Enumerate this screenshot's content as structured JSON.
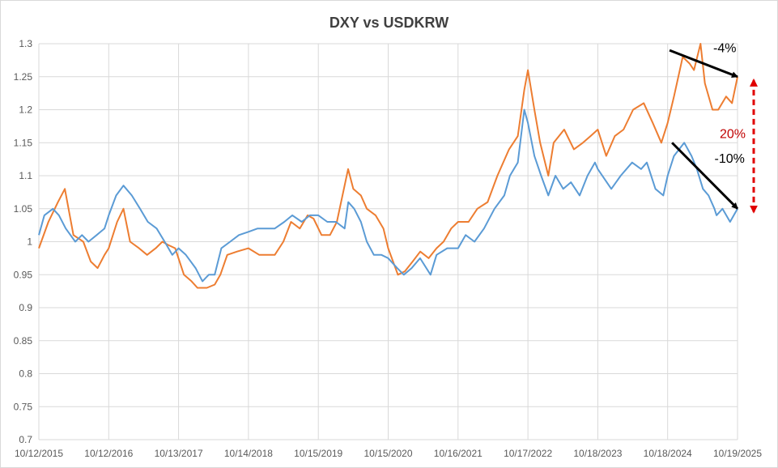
{
  "chart_data": {
    "type": "line",
    "title": "DXY vs USDKRW",
    "xlabel": "",
    "ylabel": "",
    "ylim": [
      0.7,
      1.3
    ],
    "xlim": [
      "2015-10-12",
      "2025-10-19"
    ],
    "grid": true,
    "y_ticks": [
      "0.7",
      "0.75",
      "0.8",
      "0.85",
      "0.9",
      "0.95",
      "1",
      "1.05",
      "1.1",
      "1.15",
      "1.2",
      "1.25",
      "1.3"
    ],
    "x_ticks": [
      "10/12/2015",
      "10/12/2016",
      "10/13/2017",
      "10/14/2018",
      "10/15/2019",
      "10/15/2020",
      "10/16/2021",
      "10/17/2022",
      "10/18/2023",
      "10/18/2024",
      "10/19/2025"
    ],
    "x_tick_dates": [
      "2015-10-12",
      "2016-10-12",
      "2017-10-13",
      "2018-10-14",
      "2019-10-15",
      "2020-10-15",
      "2021-10-16",
      "2022-10-17",
      "2023-10-18",
      "2024-10-18",
      "2025-10-19"
    ],
    "series": [
      {
        "color": "#ed7d31",
        "points": [
          [
            "2015-10-12",
            0.99
          ],
          [
            "2015-12-01",
            1.03
          ],
          [
            "2016-01-20",
            1.06
          ],
          [
            "2016-02-25",
            1.08
          ],
          [
            "2016-04-10",
            1.01
          ],
          [
            "2016-06-01",
            1.0
          ],
          [
            "2016-07-10",
            0.97
          ],
          [
            "2016-08-15",
            0.96
          ],
          [
            "2016-09-20",
            0.98
          ],
          [
            "2016-10-12",
            0.99
          ],
          [
            "2016-11-25",
            1.03
          ],
          [
            "2016-12-28",
            1.05
          ],
          [
            "2017-02-01",
            1.0
          ],
          [
            "2017-03-20",
            0.99
          ],
          [
            "2017-05-01",
            0.98
          ],
          [
            "2017-06-15",
            0.99
          ],
          [
            "2017-07-20",
            1.0
          ],
          [
            "2017-08-20",
            0.995
          ],
          [
            "2017-09-25",
            0.99
          ],
          [
            "2017-11-10",
            0.95
          ],
          [
            "2017-12-20",
            0.94
          ],
          [
            "2018-01-20",
            0.93
          ],
          [
            "2018-03-10",
            0.93
          ],
          [
            "2018-04-20",
            0.935
          ],
          [
            "2018-05-20",
            0.95
          ],
          [
            "2018-06-25",
            0.98
          ],
          [
            "2018-08-15",
            0.985
          ],
          [
            "2018-10-14",
            0.99
          ],
          [
            "2018-12-10",
            0.98
          ],
          [
            "2019-01-20",
            0.98
          ],
          [
            "2019-03-01",
            0.98
          ],
          [
            "2019-04-15",
            1.0
          ],
          [
            "2019-05-25",
            1.03
          ],
          [
            "2019-07-10",
            1.02
          ],
          [
            "2019-08-20",
            1.04
          ],
          [
            "2019-09-20",
            1.035
          ],
          [
            "2019-11-01",
            1.01
          ],
          [
            "2019-12-15",
            1.01
          ],
          [
            "2020-01-20",
            1.03
          ],
          [
            "2020-03-19",
            1.11
          ],
          [
            "2020-04-15",
            1.08
          ],
          [
            "2020-05-25",
            1.07
          ],
          [
            "2020-06-25",
            1.05
          ],
          [
            "2020-08-10",
            1.04
          ],
          [
            "2020-09-20",
            1.02
          ],
          [
            "2020-10-15",
            0.99
          ],
          [
            "2020-12-05",
            0.95
          ],
          [
            "2021-01-10",
            0.955
          ],
          [
            "2021-02-20",
            0.97
          ],
          [
            "2021-04-01",
            0.985
          ],
          [
            "2021-05-15",
            0.975
          ],
          [
            "2021-06-25",
            0.99
          ],
          [
            "2021-08-01",
            1.0
          ],
          [
            "2021-09-10",
            1.02
          ],
          [
            "2021-10-16",
            1.03
          ],
          [
            "2021-12-10",
            1.03
          ],
          [
            "2022-01-25",
            1.05
          ],
          [
            "2022-03-20",
            1.06
          ],
          [
            "2022-05-10",
            1.1
          ],
          [
            "2022-07-10",
            1.14
          ],
          [
            "2022-08-25",
            1.16
          ],
          [
            "2022-09-28",
            1.23
          ],
          [
            "2022-10-17",
            1.26
          ],
          [
            "2022-11-20",
            1.2
          ],
          [
            "2022-12-20",
            1.15
          ],
          [
            "2023-02-01",
            1.1
          ],
          [
            "2023-03-01",
            1.15
          ],
          [
            "2023-04-25",
            1.17
          ],
          [
            "2023-06-15",
            1.14
          ],
          [
            "2023-08-01",
            1.15
          ],
          [
            "2023-09-10",
            1.16
          ],
          [
            "2023-10-18",
            1.17
          ],
          [
            "2023-12-01",
            1.13
          ],
          [
            "2024-01-15",
            1.16
          ],
          [
            "2024-03-01",
            1.17
          ],
          [
            "2024-04-20",
            1.2
          ],
          [
            "2024-06-15",
            1.21
          ],
          [
            "2024-08-01",
            1.18
          ],
          [
            "2024-09-15",
            1.15
          ],
          [
            "2024-10-18",
            1.18
          ],
          [
            "2024-11-20",
            1.22
          ],
          [
            "2025-01-05",
            1.28
          ],
          [
            "2025-02-10",
            1.27
          ],
          [
            "2025-03-05",
            1.26
          ],
          [
            "2025-04-08",
            1.3
          ],
          [
            "2025-05-01",
            1.24
          ],
          [
            "2025-06-10",
            1.2
          ],
          [
            "2025-07-10",
            1.2
          ],
          [
            "2025-08-20",
            1.22
          ],
          [
            "2025-09-20",
            1.21
          ],
          [
            "2025-10-19",
            1.25
          ]
        ]
      },
      {
        "color": "#5b9bd5",
        "points": [
          [
            "2015-10-12",
            1.01
          ],
          [
            "2015-11-10",
            1.04
          ],
          [
            "2015-12-25",
            1.05
          ],
          [
            "2016-01-25",
            1.04
          ],
          [
            "2016-03-01",
            1.02
          ],
          [
            "2016-04-20",
            1.0
          ],
          [
            "2016-05-25",
            1.01
          ],
          [
            "2016-06-28",
            1.0
          ],
          [
            "2016-08-10",
            1.01
          ],
          [
            "2016-09-20",
            1.02
          ],
          [
            "2016-10-12",
            1.04
          ],
          [
            "2016-11-20",
            1.07
          ],
          [
            "2016-12-28",
            1.085
          ],
          [
            "2017-02-10",
            1.07
          ],
          [
            "2017-03-25",
            1.05
          ],
          [
            "2017-05-05",
            1.03
          ],
          [
            "2017-06-20",
            1.02
          ],
          [
            "2017-08-01",
            1.0
          ],
          [
            "2017-09-10",
            0.98
          ],
          [
            "2017-10-13",
            0.99
          ],
          [
            "2017-11-20",
            0.98
          ],
          [
            "2018-01-10",
            0.96
          ],
          [
            "2018-02-15",
            0.94
          ],
          [
            "2018-03-20",
            0.95
          ],
          [
            "2018-04-20",
            0.95
          ],
          [
            "2018-05-25",
            0.99
          ],
          [
            "2018-07-10",
            1.0
          ],
          [
            "2018-08-25",
            1.01
          ],
          [
            "2018-10-14",
            1.015
          ],
          [
            "2018-12-01",
            1.02
          ],
          [
            "2019-01-15",
            1.02
          ],
          [
            "2019-03-01",
            1.02
          ],
          [
            "2019-04-20",
            1.03
          ],
          [
            "2019-06-01",
            1.04
          ],
          [
            "2019-07-20",
            1.03
          ],
          [
            "2019-09-01",
            1.04
          ],
          [
            "2019-10-15",
            1.04
          ],
          [
            "2019-12-01",
            1.03
          ],
          [
            "2020-01-15",
            1.03
          ],
          [
            "2020-03-01",
            1.02
          ],
          [
            "2020-03-20",
            1.06
          ],
          [
            "2020-04-20",
            1.05
          ],
          [
            "2020-05-25",
            1.03
          ],
          [
            "2020-06-25",
            1.0
          ],
          [
            "2020-08-01",
            0.98
          ],
          [
            "2020-09-10",
            0.98
          ],
          [
            "2020-10-15",
            0.975
          ],
          [
            "2020-12-01",
            0.96
          ],
          [
            "2021-01-05",
            0.95
          ],
          [
            "2021-02-15",
            0.96
          ],
          [
            "2021-03-31",
            0.975
          ],
          [
            "2021-05-25",
            0.95
          ],
          [
            "2021-06-25",
            0.98
          ],
          [
            "2021-08-20",
            0.99
          ],
          [
            "2021-09-25",
            0.99
          ],
          [
            "2021-10-16",
            0.99
          ],
          [
            "2021-11-25",
            1.01
          ],
          [
            "2022-01-10",
            1.0
          ],
          [
            "2022-03-01",
            1.02
          ],
          [
            "2022-04-25",
            1.05
          ],
          [
            "2022-06-15",
            1.07
          ],
          [
            "2022-07-15",
            1.1
          ],
          [
            "2022-08-25",
            1.12
          ],
          [
            "2022-09-28",
            1.2
          ],
          [
            "2022-10-17",
            1.18
          ],
          [
            "2022-11-20",
            1.13
          ],
          [
            "2022-12-25",
            1.1
          ],
          [
            "2023-02-01",
            1.07
          ],
          [
            "2023-03-10",
            1.1
          ],
          [
            "2023-04-20",
            1.08
          ],
          [
            "2023-05-30",
            1.09
          ],
          [
            "2023-07-15",
            1.07
          ],
          [
            "2023-08-25",
            1.1
          ],
          [
            "2023-10-03",
            1.12
          ],
          [
            "2023-10-18",
            1.11
          ],
          [
            "2023-12-28",
            1.08
          ],
          [
            "2024-02-15",
            1.1
          ],
          [
            "2024-04-15",
            1.12
          ],
          [
            "2024-06-01",
            1.11
          ],
          [
            "2024-07-01",
            1.12
          ],
          [
            "2024-08-15",
            1.08
          ],
          [
            "2024-09-25",
            1.07
          ],
          [
            "2024-10-18",
            1.1
          ],
          [
            "2024-11-20",
            1.13
          ],
          [
            "2025-01-13",
            1.15
          ],
          [
            "2025-02-20",
            1.13
          ],
          [
            "2025-03-20",
            1.11
          ],
          [
            "2025-04-21",
            1.08
          ],
          [
            "2025-05-20",
            1.07
          ],
          [
            "2025-06-20",
            1.05
          ],
          [
            "2025-07-01",
            1.04
          ],
          [
            "2025-08-01",
            1.05
          ],
          [
            "2025-09-10",
            1.03
          ],
          [
            "2025-10-19",
            1.05
          ]
        ]
      }
    ],
    "annotations": [
      {
        "text": "-4%",
        "color": "#000000",
        "from": [
          "2024-10-28",
          1.29
        ],
        "to": [
          "2025-10-19",
          1.25
        ]
      },
      {
        "text": "-10%",
        "color": "#000000",
        "from": [
          "2024-11-10",
          1.15
        ],
        "to": [
          "2025-10-19",
          1.05
        ]
      },
      {
        "text": "20%",
        "color": "#c00000",
        "from": [
          "2025-10-19",
          1.24
        ],
        "to": [
          "2025-10-19",
          1.05
        ],
        "style": "dashed-double-arrow"
      }
    ]
  }
}
